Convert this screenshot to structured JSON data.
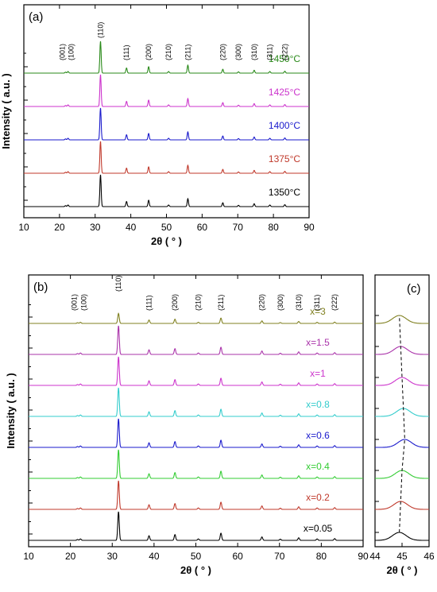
{
  "chart_data": [
    {
      "type": "line",
      "panel": "(a)",
      "xlabel": "2θ ( ° )",
      "ylabel": "Intensity ( a.u. )",
      "xlim": [
        10,
        90
      ],
      "xticks": [
        10,
        20,
        30,
        40,
        50,
        60,
        70,
        80,
        90
      ],
      "planes": [
        {
          "label": "(001)",
          "x": 21.7
        },
        {
          "label": "(100)",
          "x": 22.4
        },
        {
          "label": "(110)",
          "x": 31.5
        },
        {
          "label": "(111)",
          "x": 38.8
        },
        {
          "label": "(200)",
          "x": 45.0
        },
        {
          "label": "(210)",
          "x": 50.6
        },
        {
          "label": "(211)",
          "x": 56.0
        },
        {
          "label": "(220)",
          "x": 65.8
        },
        {
          "label": "(300)",
          "x": 70.2
        },
        {
          "label": "(310)",
          "x": 74.6
        },
        {
          "label": "(311)",
          "x": 79.0
        },
        {
          "label": "(222)",
          "x": 83.2
        }
      ],
      "series": [
        {
          "name": "1350°C",
          "color": "#000000"
        },
        {
          "name": "1375°C",
          "color": "#c0392b"
        },
        {
          "name": "1400°C",
          "color": "#1a1acc"
        },
        {
          "name": "1425°C",
          "color": "#cc33cc"
        },
        {
          "name": "1450°C",
          "color": "#2a8a1a"
        }
      ],
      "peaks": [
        {
          "x": 21.7,
          "h": 0.03
        },
        {
          "x": 22.4,
          "h": 0.05
        },
        {
          "x": 31.5,
          "h": 1.0
        },
        {
          "x": 38.8,
          "h": 0.16
        },
        {
          "x": 45.0,
          "h": 0.2
        },
        {
          "x": 50.6,
          "h": 0.05
        },
        {
          "x": 56.0,
          "h": 0.25
        },
        {
          "x": 65.8,
          "h": 0.12
        },
        {
          "x": 70.2,
          "h": 0.04
        },
        {
          "x": 74.6,
          "h": 0.09
        },
        {
          "x": 79.0,
          "h": 0.05
        },
        {
          "x": 83.2,
          "h": 0.06
        }
      ]
    },
    {
      "type": "line",
      "panel": "(b)",
      "xlabel": "2θ ( ° )",
      "ylabel": "Intensity ( a.u. )",
      "xlim": [
        10,
        90
      ],
      "xticks": [
        10,
        20,
        30,
        40,
        50,
        60,
        70,
        80,
        90
      ],
      "planes": [
        {
          "label": "(001)",
          "x": 21.7
        },
        {
          "label": "(100)",
          "x": 22.4
        },
        {
          "label": "(110)",
          "x": 31.5
        },
        {
          "label": "(111)",
          "x": 38.8
        },
        {
          "label": "(200)",
          "x": 45.0
        },
        {
          "label": "(210)",
          "x": 50.6
        },
        {
          "label": "(211)",
          "x": 56.0
        },
        {
          "label": "(220)",
          "x": 65.8
        },
        {
          "label": "(300)",
          "x": 70.2
        },
        {
          "label": "(310)",
          "x": 74.6
        },
        {
          "label": "(311)",
          "x": 79.0
        },
        {
          "label": "(222)",
          "x": 83.2
        }
      ],
      "series": [
        {
          "name": "x=0.05",
          "color": "#000000"
        },
        {
          "name": "x=0.2",
          "color": "#c0392b"
        },
        {
          "name": "x=0.4",
          "color": "#33cc33"
        },
        {
          "name": "x=0.6",
          "color": "#1a1acc"
        },
        {
          "name": "x=0.8",
          "color": "#33cccc"
        },
        {
          "name": "x=1",
          "color": "#cc33cc"
        },
        {
          "name": "x=1.5",
          "color": "#aa33aa"
        },
        {
          "name": "x=3",
          "color": "#808020"
        }
      ],
      "series_peak_scale": [
        1.0,
        1.0,
        1.0,
        1.0,
        1.0,
        1.0,
        1.0,
        0.35
      ],
      "peaks": [
        {
          "x": 21.7,
          "h": 0.03
        },
        {
          "x": 22.4,
          "h": 0.05
        },
        {
          "x": 31.5,
          "h": 1.0
        },
        {
          "x": 38.8,
          "h": 0.16
        },
        {
          "x": 45.0,
          "h": 0.2
        },
        {
          "x": 50.6,
          "h": 0.05
        },
        {
          "x": 56.0,
          "h": 0.25
        },
        {
          "x": 65.8,
          "h": 0.12
        },
        {
          "x": 70.2,
          "h": 0.04
        },
        {
          "x": 74.6,
          "h": 0.09
        },
        {
          "x": 79.0,
          "h": 0.05
        },
        {
          "x": 83.2,
          "h": 0.06
        }
      ]
    },
    {
      "type": "line",
      "panel": "(c)",
      "xlabel": "2θ ( ° )",
      "xlim": [
        44,
        46
      ],
      "xticks": [
        44,
        45,
        46
      ],
      "peak_positions": [
        44.9,
        44.95,
        45.0,
        45.1,
        45.05,
        45.0,
        44.95,
        44.9
      ],
      "colors": [
        "#000000",
        "#c0392b",
        "#33cc33",
        "#1a1acc",
        "#33cccc",
        "#cc33cc",
        "#aa33aa",
        "#808020"
      ]
    }
  ]
}
